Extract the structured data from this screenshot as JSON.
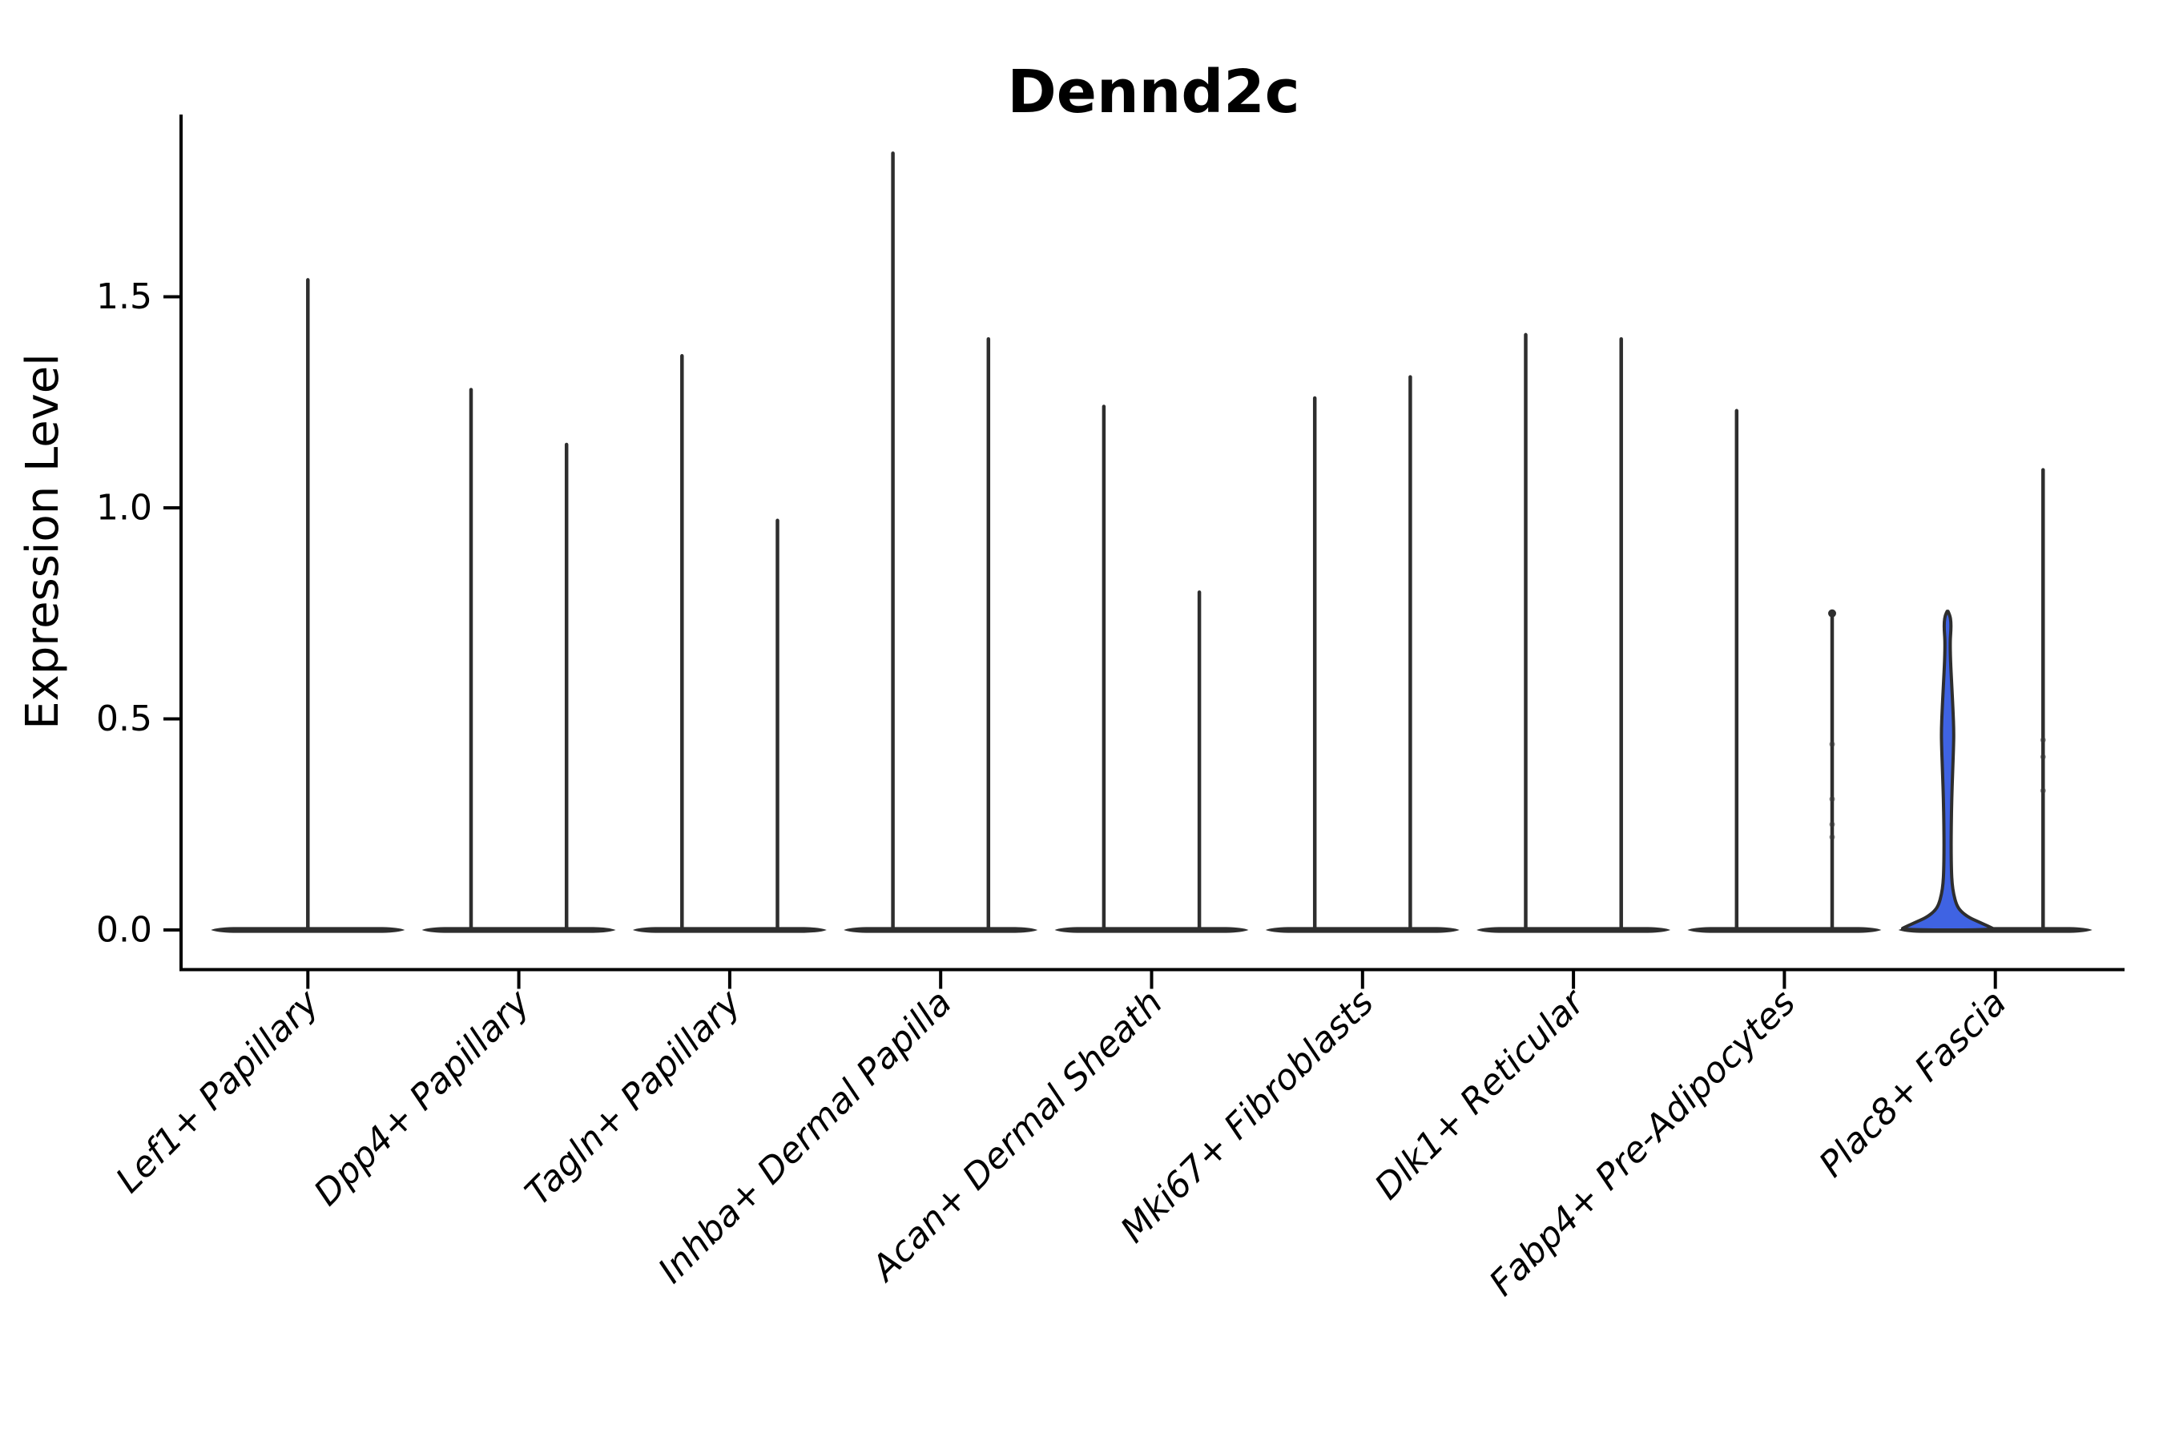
{
  "title": "Dennd2c",
  "axes": {
    "ylabel": "Expression Level",
    "xlabel": ""
  },
  "chart_data": {
    "type": "violin",
    "title": "Dennd2c",
    "ylabel": "Expression Level",
    "xlabel": "",
    "ylim": [
      -0.09,
      1.93
    ],
    "grid": false,
    "legend": "none",
    "yticks": [
      {
        "value": 0.0,
        "label": "0.0"
      },
      {
        "value": 0.5,
        "label": "0.5"
      },
      {
        "value": 1.0,
        "label": "1.0"
      },
      {
        "value": 1.5,
        "label": "1.5"
      }
    ],
    "categories": [
      "Lef1+ Papillary",
      "Dpp4+ Papillary",
      "Tagln+ Papillary",
      "Inhba+ Dermal Papilla",
      "Acan+ Dermal Sheath",
      "Mki67+ Fibroblasts",
      "Dlk1+ Reticular",
      "Fabp4+ Pre-Adipocytes",
      "Plac8+ Fascia"
    ],
    "violins": [
      {
        "category": "Lef1+ Papillary",
        "slot": "center",
        "max": 1.54,
        "filled": false
      },
      {
        "category": "Dpp4+ Papillary",
        "slot": "left",
        "max": 1.28,
        "filled": false
      },
      {
        "category": "Dpp4+ Papillary",
        "slot": "right",
        "max": 1.15,
        "filled": false
      },
      {
        "category": "Tagln+ Papillary",
        "slot": "left",
        "max": 1.36,
        "filled": false
      },
      {
        "category": "Tagln+ Papillary",
        "slot": "right",
        "max": 0.97,
        "filled": false
      },
      {
        "category": "Inhba+ Dermal Papilla",
        "slot": "left",
        "max": 1.84,
        "filled": false
      },
      {
        "category": "Inhba+ Dermal Papilla",
        "slot": "right",
        "max": 1.4,
        "filled": false
      },
      {
        "category": "Acan+ Dermal Sheath",
        "slot": "left",
        "max": 1.24,
        "filled": false
      },
      {
        "category": "Acan+ Dermal Sheath",
        "slot": "right",
        "max": 0.8,
        "filled": false
      },
      {
        "category": "Mki67+ Fibroblasts",
        "slot": "left",
        "max": 1.26,
        "filled": false
      },
      {
        "category": "Mki67+ Fibroblasts",
        "slot": "right",
        "max": 1.31,
        "filled": false
      },
      {
        "category": "Dlk1+ Reticular",
        "slot": "left",
        "max": 1.41,
        "filled": false
      },
      {
        "category": "Dlk1+ Reticular",
        "slot": "right",
        "max": 1.4,
        "filled": false
      },
      {
        "category": "Fabp4+ Pre-Adipocytes",
        "slot": "left",
        "max": 1.23,
        "filled": false
      },
      {
        "category": "Fabp4+ Pre-Adipocytes",
        "slot": "right",
        "max": 0.75,
        "filled": false,
        "knob_top": true
      },
      {
        "category": "Plac8+ Fascia",
        "slot": "left",
        "max": 0.76,
        "filled": true,
        "fill_color": "#3f63e3"
      },
      {
        "category": "Plac8+ Fascia",
        "slot": "right",
        "max": 1.09,
        "filled": false
      }
    ],
    "highlight_violin": {
      "category": "Plac8+ Fascia",
      "slot": "left",
      "fill_color": "#3f63e3",
      "profile_value_halfwidthpx": [
        [
          0.755,
          0.5
        ],
        [
          0.745,
          3.0
        ],
        [
          0.73,
          4.2
        ],
        [
          0.71,
          4.2
        ],
        [
          0.685,
          3.2
        ],
        [
          0.64,
          3.6
        ],
        [
          0.58,
          5.2
        ],
        [
          0.52,
          6.8
        ],
        [
          0.47,
          7.8
        ],
        [
          0.43,
          7.4
        ],
        [
          0.37,
          6.2
        ],
        [
          0.31,
          5.2
        ],
        [
          0.25,
          4.6
        ],
        [
          0.19,
          4.4
        ],
        [
          0.14,
          4.8
        ],
        [
          0.11,
          5.6
        ],
        [
          0.085,
          7.5
        ],
        [
          0.06,
          11.0
        ],
        [
          0.045,
          16.0
        ],
        [
          0.03,
          26.0
        ],
        [
          0.018,
          40.0
        ],
        [
          0.008,
          52.0
        ],
        [
          0.0,
          60.0
        ]
      ]
    },
    "jitter_points": [
      {
        "category": "Fabp4+ Pre-Adipocytes",
        "slot": "right",
        "values": [
          0.44,
          0.31,
          0.25,
          0.22
        ]
      },
      {
        "category": "Plac8+ Fascia",
        "slot": "right",
        "values": [
          0.45,
          0.41,
          0.33
        ]
      }
    ],
    "colors": {
      "violin_line": "#2e2e2e",
      "highlight_fill": "#3f63e3",
      "axis": "#000000",
      "background": "#ffffff"
    }
  }
}
